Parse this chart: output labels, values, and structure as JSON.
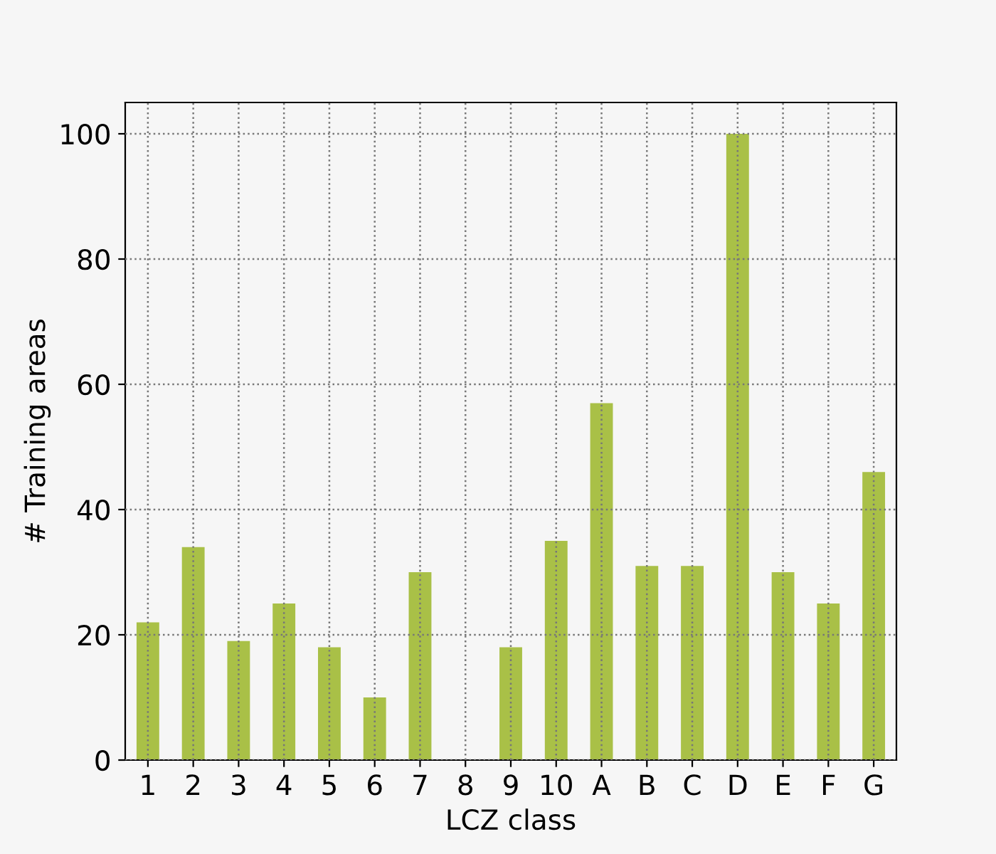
{
  "chart_data": {
    "type": "bar",
    "categories": [
      "1",
      "2",
      "3",
      "4",
      "5",
      "6",
      "7",
      "8",
      "9",
      "10",
      "A",
      "B",
      "C",
      "D",
      "E",
      "F",
      "G"
    ],
    "values": [
      22,
      34,
      19,
      25,
      18,
      10,
      30,
      0,
      18,
      35,
      57,
      31,
      31,
      100,
      30,
      25,
      46
    ],
    "color": "#a9c047",
    "xlabel": "LCZ class",
    "ylabel": "# Training areas",
    "ylim": [
      0,
      105
    ],
    "yticks": [
      0,
      20,
      40,
      60,
      80,
      100
    ],
    "grid": true
  }
}
